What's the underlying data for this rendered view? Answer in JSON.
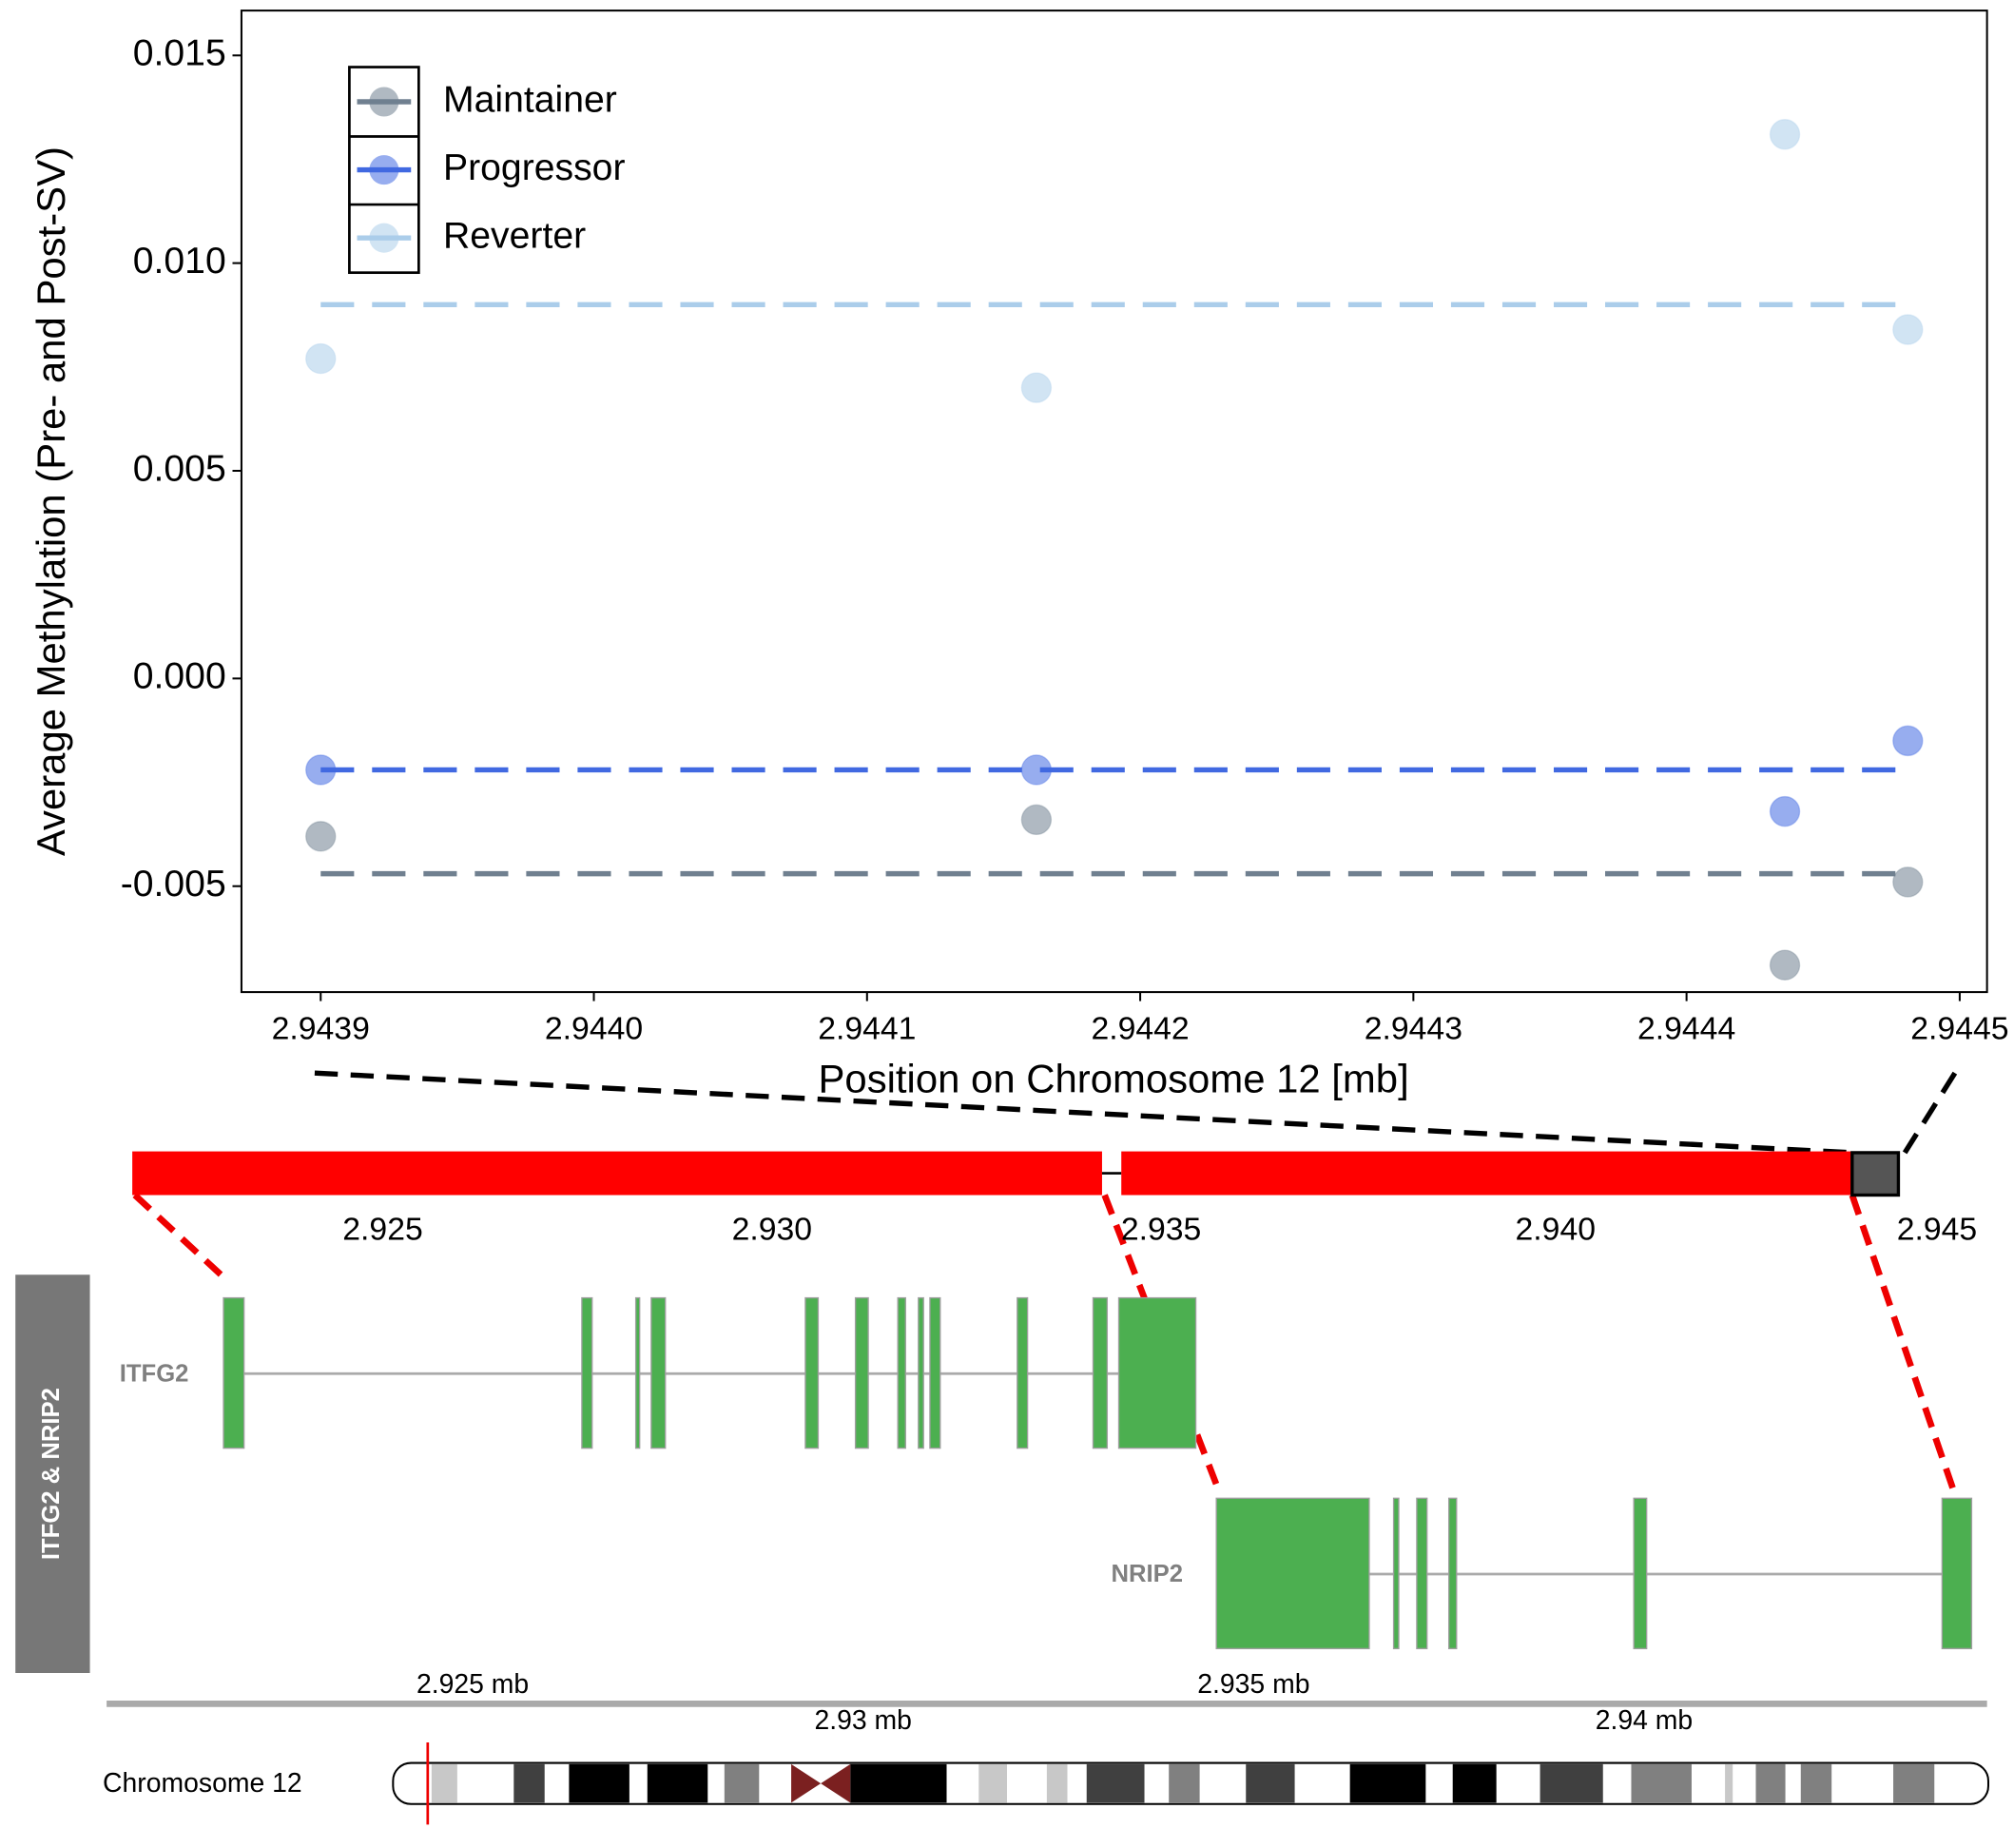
{
  "chart_data": {
    "type": "scatter",
    "x_label": "Position on Chromosome 12 [mb]",
    "y_label": "Average Methylation (Pre- and Post-SV)",
    "xlim": [
      2.943871,
      2.94451
    ],
    "xticks": [
      2.9439,
      {
        "value": 2.944,
        "label": "2.9440"
      },
      2.9441,
      2.9442,
      2.9443,
      2.9444,
      2.9445
    ],
    "ylim": [
      -0.00755,
      0.01608
    ],
    "yticks": [
      -0.005,
      {
        "value": 0,
        "label": "0.000"
      },
      0.005,
      {
        "value": 0.01,
        "label": "0.010"
      },
      0.015
    ],
    "legend": "top-left",
    "grid": false,
    "series": [
      {
        "name": "Maintainer",
        "color": "#708090",
        "x": [
          2.9439,
          2.944162,
          2.944436,
          2.944481
        ],
        "values": [
          -0.0038,
          -0.0034,
          -0.0069,
          -0.0049
        ],
        "mean": -0.0047
      },
      {
        "name": "Progressor",
        "color": "#4169e1",
        "x": [
          2.9439,
          2.944162,
          2.944436,
          2.944481
        ],
        "values": [
          -0.0022,
          -0.0022,
          -0.0032,
          -0.0015
        ],
        "mean": -0.0022
      },
      {
        "name": "Reverter",
        "color": "#abcdea",
        "x": [
          2.9439,
          2.944162,
          2.944436,
          2.944481
        ],
        "values": [
          0.0077,
          0.007,
          0.0131,
          0.0084
        ],
        "mean": 0.009
      }
    ]
  },
  "region_axis": {
    "labels": [
      "2.925",
      "2.930",
      "2.935",
      "2.940",
      "2.945"
    ]
  },
  "gene_track": {
    "title": "ITFG2 & NRIP2",
    "genes": [
      "ITFG2",
      "NRIP2"
    ],
    "axis_labels": [
      "2.925 mb",
      "2.935 mb",
      "2.93 mb",
      "2.94 mb"
    ]
  },
  "ideogram": {
    "label": "Chromosome 12"
  }
}
